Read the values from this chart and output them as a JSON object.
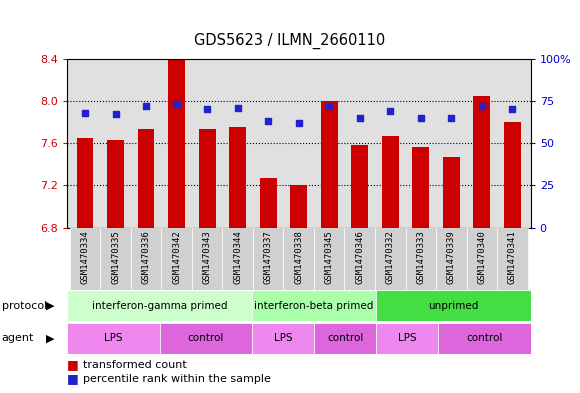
{
  "title": "GDS5623 / ILMN_2660110",
  "samples": [
    "GSM1470334",
    "GSM1470335",
    "GSM1470336",
    "GSM1470342",
    "GSM1470343",
    "GSM1470344",
    "GSM1470337",
    "GSM1470338",
    "GSM1470345",
    "GSM1470346",
    "GSM1470332",
    "GSM1470333",
    "GSM1470339",
    "GSM1470340",
    "GSM1470341"
  ],
  "transformed_counts": [
    7.65,
    7.63,
    7.73,
    8.4,
    7.73,
    7.75,
    7.27,
    7.2,
    8.0,
    7.58,
    7.67,
    7.56,
    7.47,
    8.05,
    7.8
  ],
  "percentile_ranks": [
    68,
    67,
    72,
    73,
    70,
    71,
    63,
    62,
    72,
    65,
    69,
    65,
    65,
    72,
    70
  ],
  "y_min": 6.8,
  "y_max": 8.4,
  "y_ticks": [
    6.8,
    7.2,
    7.6,
    8.0,
    8.4
  ],
  "right_y_ticks": [
    0,
    25,
    50,
    75,
    100
  ],
  "bar_color": "#CC0000",
  "dot_color": "#2222CC",
  "protocol_groups": [
    {
      "label": "interferon-gamma primed",
      "start": 0,
      "end": 6,
      "color": "#CCFFCC"
    },
    {
      "label": "interferon-beta primed",
      "start": 6,
      "end": 10,
      "color": "#AAFFAA"
    },
    {
      "label": "unprimed",
      "start": 10,
      "end": 15,
      "color": "#44DD44"
    }
  ],
  "agent_groups": [
    {
      "label": "LPS",
      "start": 0,
      "end": 3,
      "color": "#EE88EE"
    },
    {
      "label": "control",
      "start": 3,
      "end": 6,
      "color": "#DD66DD"
    },
    {
      "label": "LPS",
      "start": 6,
      "end": 8,
      "color": "#EE88EE"
    },
    {
      "label": "control",
      "start": 8,
      "end": 10,
      "color": "#DD66DD"
    },
    {
      "label": "LPS",
      "start": 10,
      "end": 12,
      "color": "#EE88EE"
    },
    {
      "label": "control",
      "start": 12,
      "end": 15,
      "color": "#DD66DD"
    }
  ],
  "bar_width": 0.55,
  "panel_bg": "#E0E0E0",
  "left_label_color": "#CC0000",
  "right_label_color": "#0000CC",
  "tick_bg": "#D0D0D0"
}
